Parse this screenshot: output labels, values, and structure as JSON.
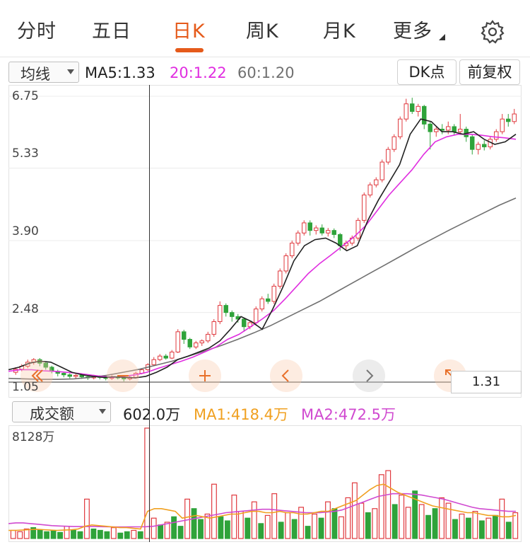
{
  "tabs": {
    "intraday": "分时",
    "five_day": "五日",
    "daily_k": "日K",
    "weekly_k": "周K",
    "monthly_k": "月K",
    "more": "更多"
  },
  "toolbar": {
    "ma_select": "均线",
    "ma5": "MA5:1.33",
    "ma20": "20:1.22",
    "ma60": "60:1.20",
    "dk_button": "DK点",
    "adjust_button": "前复权"
  },
  "price_axis": [
    "6.75",
    "5.33",
    "3.90",
    "2.48",
    "1.05"
  ],
  "crosshair_price": "1.31",
  "volume": {
    "select": "成交额",
    "value": "602.0万",
    "ma1": "MA1:418.4万",
    "ma2": "MA2:472.5万",
    "axis_max": "8128万"
  },
  "colors": {
    "up": "#e0393e",
    "down": "#2fa33a",
    "ma5": "#222222",
    "ma20": "#e02ee0",
    "ma60": "#707070",
    "vol_ma1": "#f0a020",
    "vol_ma2": "#d04ad0",
    "active_tab": "#e55a1a"
  },
  "chart_data": {
    "type": "candlestick",
    "ylim": [
      1.05,
      6.75
    ],
    "ma_lines": {
      "ma5": [
        1.35,
        1.4,
        1.48,
        1.52,
        1.5,
        1.4,
        1.3,
        1.25,
        1.22,
        1.2,
        1.21,
        1.2,
        1.19,
        1.22,
        1.3,
        1.4,
        1.55,
        1.62,
        1.7,
        1.78,
        1.92,
        2.15,
        2.4,
        2.3,
        2.15,
        2.55,
        3.0,
        3.5,
        3.8,
        3.92,
        3.95,
        3.85,
        3.7,
        3.8,
        4.3,
        4.7,
        5.05,
        5.4,
        6.0,
        6.3,
        6.25,
        6.05,
        6.05,
        6.0,
        6.05,
        5.9,
        5.8,
        5.85,
        6.0
      ],
      "ma20": [
        1.32,
        1.35,
        1.35,
        1.33,
        1.32,
        1.3,
        1.28,
        1.25,
        1.22,
        1.2,
        1.22,
        1.25,
        1.3,
        1.38,
        1.45,
        1.52,
        1.6,
        1.7,
        1.8,
        1.95,
        2.05,
        2.2,
        2.35,
        2.52,
        2.75,
        3.0,
        3.25,
        3.45,
        3.62,
        3.8,
        3.98,
        4.2,
        4.5,
        4.8,
        5.05,
        5.3,
        5.6,
        5.85,
        5.95,
        6.0,
        6.0,
        5.98,
        5.95,
        5.93,
        5.9
      ],
      "ma60": [
        1.18,
        1.17,
        1.16,
        1.16,
        1.17,
        1.2,
        1.24,
        1.3,
        1.36,
        1.44,
        1.52,
        1.62,
        1.72,
        1.83,
        1.95,
        2.08,
        2.22,
        2.38,
        2.54,
        2.7,
        2.88,
        3.06,
        3.24,
        3.42,
        3.6,
        3.78,
        3.95,
        4.12,
        4.28,
        4.44,
        4.6,
        4.74
      ]
    },
    "candles": [
      [
        1.3,
        1.36,
        1.4,
        1.25
      ],
      [
        1.36,
        1.42,
        1.46,
        1.32
      ],
      [
        1.42,
        1.5,
        1.55,
        1.38
      ],
      [
        1.5,
        1.55,
        1.58,
        1.45
      ],
      [
        1.55,
        1.48,
        1.58,
        1.42
      ],
      [
        1.48,
        1.4,
        1.5,
        1.35
      ],
      [
        1.4,
        1.32,
        1.43,
        1.28
      ],
      [
        1.32,
        1.28,
        1.35,
        1.22
      ],
      [
        1.28,
        1.25,
        1.3,
        1.2
      ],
      [
        1.25,
        1.22,
        1.28,
        1.18
      ],
      [
        1.22,
        1.24,
        1.27,
        1.18
      ],
      [
        1.24,
        1.21,
        1.26,
        1.17
      ],
      [
        1.21,
        1.19,
        1.23,
        1.15
      ],
      [
        1.19,
        1.22,
        1.25,
        1.16
      ],
      [
        1.22,
        1.2,
        1.24,
        1.16
      ],
      [
        1.2,
        1.18,
        1.22,
        1.14
      ],
      [
        1.18,
        1.21,
        1.24,
        1.15
      ],
      [
        1.21,
        1.19,
        1.23,
        1.16
      ],
      [
        1.19,
        1.17,
        1.21,
        1.12
      ],
      [
        1.17,
        1.2,
        1.23,
        1.14
      ],
      [
        1.2,
        1.28,
        1.31,
        1.18
      ],
      [
        1.28,
        1.35,
        1.38,
        1.26
      ],
      [
        1.35,
        1.45,
        1.48,
        1.33
      ],
      [
        1.45,
        1.55,
        1.6,
        1.42
      ],
      [
        1.55,
        1.62,
        1.66,
        1.52
      ],
      [
        1.62,
        1.58,
        1.66,
        1.55
      ],
      [
        1.58,
        1.7,
        1.74,
        1.56
      ],
      [
        1.7,
        2.1,
        2.15,
        1.68
      ],
      [
        2.1,
        1.95,
        2.14,
        1.86
      ],
      [
        1.95,
        1.8,
        1.98,
        1.76
      ],
      [
        1.8,
        1.88,
        1.92,
        1.76
      ],
      [
        1.88,
        1.92,
        1.95,
        1.82
      ],
      [
        1.92,
        2.05,
        2.1,
        1.88
      ],
      [
        2.05,
        2.3,
        2.35,
        2.0
      ],
      [
        2.3,
        2.62,
        2.7,
        2.25
      ],
      [
        2.62,
        2.48,
        2.66,
        2.4
      ],
      [
        2.48,
        2.4,
        2.52,
        2.3
      ],
      [
        2.4,
        2.35,
        2.45,
        2.28
      ],
      [
        2.35,
        2.2,
        2.38,
        2.1
      ],
      [
        2.2,
        2.28,
        2.32,
        2.15
      ],
      [
        2.28,
        2.55,
        2.6,
        2.22
      ],
      [
        2.55,
        2.75,
        2.8,
        2.5
      ],
      [
        2.75,
        2.7,
        2.85,
        2.65
      ],
      [
        2.7,
        3.0,
        3.05,
        2.65
      ],
      [
        3.0,
        3.3,
        3.35,
        2.95
      ],
      [
        3.3,
        3.6,
        3.65,
        3.25
      ],
      [
        3.6,
        3.85,
        3.9,
        3.55
      ],
      [
        3.85,
        4.05,
        4.1,
        3.8
      ],
      [
        4.05,
        4.25,
        4.3,
        4.0
      ],
      [
        4.25,
        4.1,
        4.3,
        4.0
      ],
      [
        4.1,
        4.15,
        4.2,
        4.02
      ],
      [
        4.15,
        4.05,
        4.22,
        4.0
      ],
      [
        4.05,
        4.1,
        4.15,
        3.98
      ],
      [
        4.1,
        4.02,
        4.14,
        3.95
      ],
      [
        4.02,
        3.8,
        4.05,
        3.7
      ],
      [
        3.8,
        3.85,
        3.9,
        3.72
      ],
      [
        3.85,
        3.95,
        4.0,
        3.8
      ],
      [
        3.95,
        4.3,
        4.35,
        3.9
      ],
      [
        4.3,
        4.8,
        4.85,
        4.25
      ],
      [
        4.8,
        5.0,
        5.05,
        4.75
      ],
      [
        5.0,
        5.1,
        5.15,
        4.95
      ],
      [
        5.1,
        5.45,
        5.5,
        5.05
      ],
      [
        5.45,
        5.7,
        5.75,
        5.4
      ],
      [
        5.7,
        5.95,
        6.0,
        5.65
      ],
      [
        5.95,
        6.3,
        6.35,
        5.9
      ],
      [
        6.3,
        6.6,
        6.7,
        6.25
      ],
      [
        6.6,
        6.45,
        6.72,
        6.4
      ],
      [
        6.45,
        6.55,
        6.6,
        6.35
      ],
      [
        6.55,
        6.2,
        6.58,
        6.1
      ],
      [
        6.2,
        6.05,
        6.25,
        5.7
      ],
      [
        6.05,
        6.1,
        6.15,
        5.95
      ],
      [
        6.1,
        6.08,
        6.2,
        6.0
      ],
      [
        6.08,
        6.15,
        6.25,
        6.0
      ],
      [
        6.15,
        6.05,
        6.2,
        5.98
      ],
      [
        6.05,
        6.1,
        6.4,
        6.0
      ],
      [
        6.1,
        5.95,
        6.15,
        5.85
      ],
      [
        5.95,
        5.7,
        6.0,
        5.6
      ],
      [
        5.7,
        5.8,
        5.85,
        5.6
      ],
      [
        5.8,
        5.75,
        5.88,
        5.68
      ],
      [
        5.75,
        5.9,
        5.95,
        5.7
      ],
      [
        5.9,
        6.05,
        6.1,
        5.85
      ],
      [
        6.05,
        6.3,
        6.4,
        6.0
      ],
      [
        6.3,
        6.25,
        6.4,
        6.15
      ],
      [
        6.25,
        6.4,
        6.5,
        6.2
      ]
    ],
    "volume": [
      [
        600,
        1
      ],
      [
        500,
        1
      ],
      [
        700,
        1
      ],
      [
        800,
        0
      ],
      [
        650,
        0
      ],
      [
        500,
        0
      ],
      [
        550,
        0
      ],
      [
        450,
        0
      ],
      [
        900,
        1
      ],
      [
        600,
        0
      ],
      [
        500,
        0
      ],
      [
        2900,
        1
      ],
      [
        700,
        0
      ],
      [
        600,
        0
      ],
      [
        500,
        0
      ],
      [
        800,
        1
      ],
      [
        400,
        0
      ],
      [
        500,
        0
      ],
      [
        600,
        1
      ],
      [
        500,
        0
      ],
      [
        8128,
        1
      ],
      [
        1500,
        1
      ],
      [
        1000,
        0
      ],
      [
        1200,
        1
      ],
      [
        1600,
        0
      ],
      [
        900,
        0
      ],
      [
        2900,
        1
      ],
      [
        2200,
        0
      ],
      [
        1400,
        0
      ],
      [
        1800,
        1
      ],
      [
        4000,
        1
      ],
      [
        1600,
        0
      ],
      [
        1300,
        0
      ],
      [
        3200,
        1
      ],
      [
        2000,
        1
      ],
      [
        1500,
        0
      ],
      [
        2700,
        1
      ],
      [
        1100,
        0
      ],
      [
        1700,
        1
      ],
      [
        3300,
        1
      ],
      [
        1200,
        0
      ],
      [
        1900,
        1
      ],
      [
        1400,
        0
      ],
      [
        2300,
        1
      ],
      [
        900,
        0
      ],
      [
        1800,
        1
      ],
      [
        1500,
        0
      ],
      [
        2700,
        1
      ],
      [
        2200,
        0
      ],
      [
        1600,
        1
      ],
      [
        3000,
        1
      ],
      [
        4100,
        1
      ],
      [
        2600,
        1
      ],
      [
        1900,
        0
      ],
      [
        2200,
        1
      ],
      [
        4700,
        1
      ],
      [
        5000,
        1
      ],
      [
        2500,
        0
      ],
      [
        3200,
        1
      ],
      [
        2300,
        1
      ],
      [
        3500,
        0
      ],
      [
        2500,
        1
      ],
      [
        1700,
        0
      ],
      [
        2200,
        0
      ],
      [
        3000,
        1
      ],
      [
        2600,
        1
      ],
      [
        1400,
        0
      ],
      [
        1800,
        1
      ],
      [
        1500,
        0
      ],
      [
        2000,
        1
      ],
      [
        1300,
        0
      ],
      [
        1500,
        1
      ],
      [
        1700,
        0
      ],
      [
        2900,
        1
      ],
      [
        1200,
        0
      ],
      [
        1900,
        1
      ]
    ],
    "volume_ma": {
      "ma1": [
        600,
        600,
        620,
        650,
        680,
        650,
        620,
        600,
        620,
        640,
        700,
        900,
        1000,
        950,
        900,
        850,
        800,
        800,
        750,
        700,
        2000,
        2200,
        2200,
        2100,
        2000,
        1500,
        1600,
        1700,
        1600,
        1500,
        1600,
        1700,
        1800,
        1800,
        1900,
        2000,
        2000,
        1900,
        1900,
        2000,
        1900,
        1900,
        1800,
        1800,
        1900,
        2000,
        2000,
        2200,
        2400,
        2600,
        2800,
        3200,
        3600,
        3900,
        4000,
        3700,
        3400,
        3200,
        3000,
        2800,
        2600,
        2400,
        2300,
        2200,
        2100,
        2000,
        1900,
        1900,
        1800,
        1700,
        1700,
        1600,
        1600,
        1700
      ],
      "ma2": [
        1100,
        1150,
        1150,
        1100,
        1050,
        1000,
        950,
        920,
        900,
        880,
        880,
        880,
        880,
        870,
        860,
        850,
        850,
        860,
        860,
        870,
        900,
        1000,
        1100,
        1200,
        1300,
        1400,
        1500,
        1600,
        1700,
        1800,
        1900,
        1950,
        2000,
        2050,
        2100,
        2150,
        2150,
        2100,
        2050,
        2000,
        1950,
        1900,
        1900,
        1900,
        1950,
        2000,
        2100,
        2300,
        2500,
        2700,
        2900,
        3100,
        3200,
        3300,
        3300,
        3300,
        3250,
        3200,
        3100,
        3000,
        2900,
        2750,
        2600,
        2450,
        2300,
        2200,
        2150,
        2100,
        2050,
        2000,
        2000
      ]
    }
  }
}
